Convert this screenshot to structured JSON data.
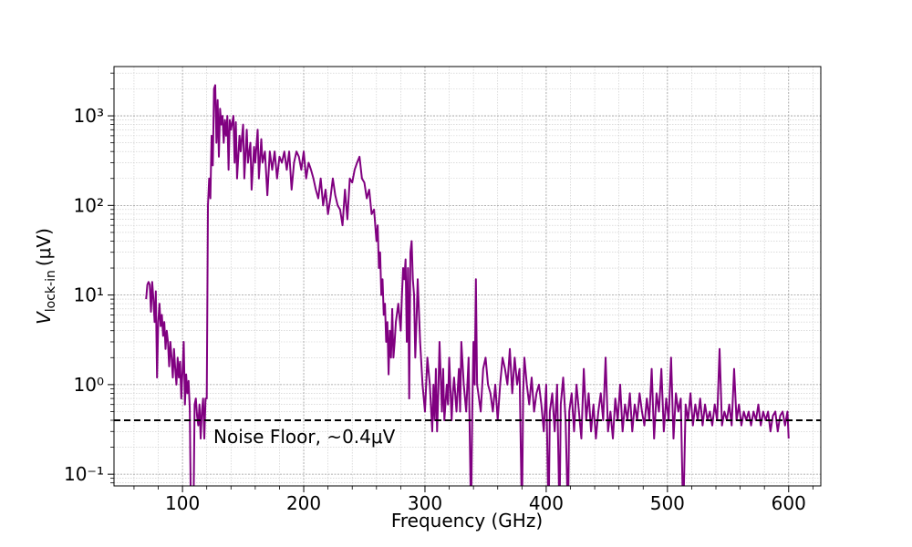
{
  "chart_data": {
    "type": "line",
    "xlabel": "Frequency (GHz)",
    "ylabel": {
      "symbol": "V",
      "subscript": "lock-in",
      "unit": "(μV)"
    },
    "annotation": {
      "value": 0.4,
      "label": "Noise Floor, ~0.4μV"
    },
    "color": "#800080",
    "yscale": "log",
    "grid": true,
    "xlim": [
      43.5,
      626.5
    ],
    "ylim": [
      0.074,
      3550
    ],
    "xticks": [
      100,
      200,
      300,
      400,
      500,
      600
    ],
    "xminor_ticks": [
      60,
      80,
      120,
      140,
      160,
      180,
      220,
      240,
      260,
      280,
      320,
      340,
      360,
      380,
      420,
      440,
      460,
      480,
      520,
      540,
      560,
      580,
      620
    ],
    "yticks": [
      {
        "value": 0.1,
        "label": "10⁻¹"
      },
      {
        "value": 1,
        "label": "10⁰"
      },
      {
        "value": 10,
        "label": "10¹"
      },
      {
        "value": 100,
        "label": "10²"
      },
      {
        "value": 1000,
        "label": "10³"
      }
    ],
    "yminor_ticks": [
      0.08,
      0.09,
      0.2,
      0.3,
      0.4,
      0.5,
      0.6,
      0.7,
      0.8,
      0.9,
      2,
      3,
      4,
      5,
      6,
      7,
      8,
      9,
      20,
      30,
      40,
      50,
      60,
      70,
      80,
      90,
      200,
      300,
      400,
      500,
      600,
      700,
      800,
      900,
      2000,
      3000
    ],
    "x": [
      70,
      71,
      72,
      73,
      74,
      75,
      76,
      77,
      78,
      79,
      80,
      81,
      82,
      83,
      84,
      85,
      86,
      87,
      88,
      89,
      90,
      91,
      92,
      93,
      94,
      95,
      96,
      97,
      98,
      99,
      100,
      101,
      102,
      103,
      104,
      105,
      106,
      107,
      109,
      110,
      111,
      112,
      113,
      114,
      115,
      116,
      117,
      118,
      119,
      120,
      121,
      122,
      123,
      124,
      125,
      126,
      127,
      128,
      129,
      130,
      131,
      132,
      133,
      134,
      135,
      136,
      137,
      138,
      139,
      140,
      142,
      143,
      144,
      145,
      147,
      148,
      150,
      151,
      153,
      154,
      156,
      157,
      159,
      160,
      162,
      163,
      165,
      166,
      168,
      170,
      172,
      174,
      176,
      178,
      180,
      182,
      184,
      186,
      188,
      190,
      192,
      194,
      196,
      198,
      200,
      202,
      204,
      206,
      208,
      210,
      212,
      214,
      216,
      218,
      220,
      222,
      224,
      226,
      228,
      230,
      232,
      234,
      236,
      238,
      240,
      242,
      244,
      246,
      248,
      250,
      252,
      254,
      256,
      258,
      260,
      261,
      262,
      263,
      264,
      265,
      266,
      267,
      268,
      269,
      270,
      271,
      272,
      273,
      274,
      275,
      276,
      278,
      280,
      281,
      282,
      283,
      284,
      285,
      286,
      287,
      288,
      289,
      290,
      291,
      292,
      293,
      294,
      296,
      298,
      300,
      302,
      304,
      306,
      307,
      308,
      309,
      310,
      311,
      312,
      314,
      315,
      316,
      318,
      319,
      320,
      322,
      323,
      324,
      326,
      328,
      329,
      330,
      332,
      334,
      336,
      338,
      339,
      340,
      341,
      342,
      343,
      344,
      346,
      348,
      350,
      352,
      354,
      356,
      358,
      360,
      362,
      364,
      366,
      368,
      370,
      372,
      374,
      376,
      378,
      380,
      381,
      382,
      384,
      386,
      388,
      390,
      392,
      394,
      396,
      398,
      400,
      402,
      403,
      405,
      407,
      409,
      411,
      412,
      414,
      416,
      418,
      419,
      421,
      423,
      425,
      427,
      429,
      431,
      433,
      435,
      437,
      439,
      441,
      443,
      445,
      447,
      449,
      451,
      453,
      455,
      457,
      459,
      461,
      463,
      465,
      467,
      469,
      471,
      473,
      475,
      477,
      479,
      481,
      483,
      485,
      487,
      489,
      491,
      493,
      495,
      497,
      499,
      501,
      503,
      505,
      507,
      509,
      511,
      513,
      515,
      517,
      519,
      521,
      523,
      525,
      527,
      529,
      531,
      533,
      535,
      537,
      539,
      541,
      543,
      545,
      547,
      549,
      551,
      553,
      555,
      557,
      559,
      561,
      563,
      565,
      567,
      569,
      571,
      573,
      575,
      577,
      579,
      581,
      583,
      585,
      587,
      589,
      591,
      593,
      595,
      597,
      599,
      600
    ],
    "values": [
      9,
      13,
      14,
      13,
      6.5,
      14,
      9,
      5,
      11,
      1.2,
      5,
      8,
      4.5,
      6,
      3.5,
      5,
      2.5,
      4,
      3,
      1.6,
      3,
      2,
      1.2,
      2.5,
      1.5,
      1,
      2,
      1.2,
      1.8,
      0.7,
      1.4,
      3,
      0.6,
      1.3,
      0.8,
      1.1,
      0.55,
      0.03,
      0.03,
      0.6,
      0.7,
      0.45,
      0.35,
      0.6,
      0.25,
      0.5,
      0.7,
      0.25,
      0.7,
      0.7,
      100,
      200,
      120,
      600,
      280,
      2000,
      2200,
      500,
      1500,
      350,
      1200,
      800,
      1000,
      500,
      900,
      600,
      1000,
      250,
      900,
      700,
      1000,
      300,
      850,
      200,
      600,
      400,
      800,
      200,
      700,
      300,
      500,
      150,
      450,
      300,
      700,
      200,
      550,
      300,
      400,
      130,
      400,
      250,
      400,
      200,
      350,
      300,
      400,
      250,
      400,
      150,
      300,
      400,
      350,
      250,
      400,
      200,
      300,
      250,
      200,
      150,
      120,
      200,
      100,
      150,
      80,
      120,
      200,
      130,
      100,
      90,
      60,
      150,
      70,
      200,
      180,
      250,
      300,
      350,
      200,
      180,
      120,
      150,
      80,
      90,
      40,
      60,
      20,
      30,
      10,
      15,
      6,
      8,
      3,
      5,
      1.3,
      4,
      2,
      7,
      2,
      3,
      5,
      8,
      4,
      10,
      20,
      15,
      25,
      3,
      20,
      0.7,
      30,
      40,
      15,
      10,
      2,
      5,
      15,
      3,
      1,
      0.5,
      2,
      1,
      0.3,
      1,
      0.4,
      1.5,
      0.3,
      0.8,
      3,
      0.5,
      1.5,
      0.4,
      1,
      0.6,
      2,
      0.4,
      0.8,
      1.2,
      0.5,
      1.5,
      0.5,
      3,
      1,
      0.5,
      2,
      0.03,
      0.5,
      3,
      1,
      15,
      1,
      0.8,
      0.5,
      1.5,
      2,
      1,
      0.8,
      0.5,
      1,
      0.4,
      1,
      2,
      1.5,
      1,
      2.5,
      0.8,
      2,
      1,
      1.5,
      0.03,
      0.8,
      2,
      1,
      0.6,
      1.2,
      0.5,
      0.8,
      1,
      0.6,
      0.3,
      1,
      0.03,
      0.5,
      0.8,
      0.3,
      1,
      0.03,
      0.6,
      1.2,
      0.4,
      0.03,
      0.5,
      0.8,
      0.3,
      1,
      0.5,
      0.25,
      1.5,
      0.4,
      0.8,
      0.3,
      0.6,
      0.25,
      0.5,
      0.8,
      0.4,
      2,
      0.3,
      0.5,
      0.25,
      0.7,
      0.4,
      1,
      0.3,
      0.6,
      0.4,
      0.8,
      0.3,
      0.6,
      0.4,
      0.8,
      0.5,
      0.35,
      0.7,
      0.4,
      1.5,
      0.25,
      0.8,
      0.5,
      1.5,
      0.3,
      0.7,
      0.4,
      2,
      0.25,
      0.8,
      0.5,
      0.7,
      0.03,
      0.6,
      0.4,
      0.8,
      0.35,
      0.6,
      0.4,
      0.7,
      0.35,
      0.6,
      0.4,
      0.5,
      0.35,
      0.6,
      0.4,
      2.5,
      0.35,
      0.5,
      0.4,
      0.6,
      0.35,
      1.5,
      0.4,
      0.6,
      0.35,
      0.5,
      0.4,
      0.5,
      0.35,
      0.5,
      0.4,
      0.6,
      0.35,
      0.5,
      0.4,
      0.5,
      0.3,
      0.45,
      0.5,
      0.3,
      0.45,
      0.5,
      0.35,
      0.5,
      0.25
    ]
  }
}
